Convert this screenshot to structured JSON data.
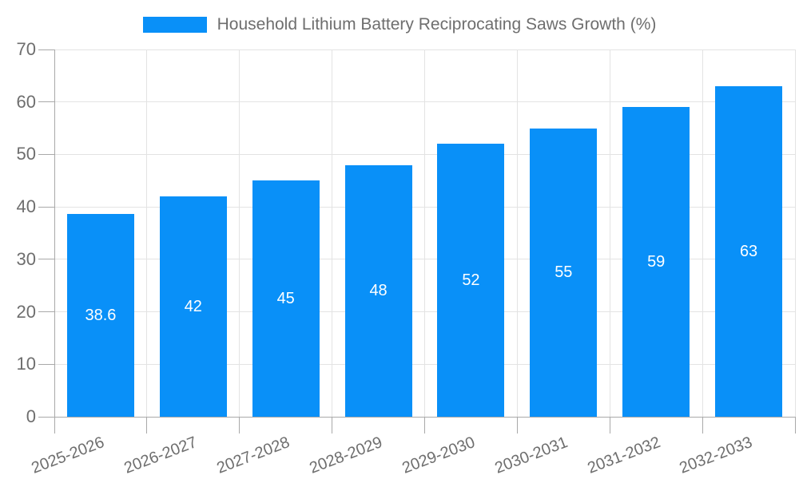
{
  "chart_data": {
    "type": "bar",
    "legend": "Household Lithium Battery Reciprocating Saws Growth (%)",
    "categories": [
      "2025-2026",
      "2026-2027",
      "2027-2028",
      "2028-2029",
      "2029-2030",
      "2030-2031",
      "2031-2032",
      "2032-2033"
    ],
    "values": [
      38.6,
      42,
      45,
      48,
      52,
      55,
      59,
      63
    ],
    "value_labels": [
      "38.6",
      "42",
      "45",
      "48",
      "52",
      "55",
      "59",
      "63"
    ],
    "ylim": [
      0,
      70
    ],
    "y_ticks": [
      0,
      10,
      20,
      30,
      40,
      50,
      60,
      70
    ],
    "grid": true,
    "legend_position": "top",
    "bar_color": "#0990f8",
    "value_label_color": "#ffffff",
    "axis_text_color": "#6e6e6e"
  }
}
